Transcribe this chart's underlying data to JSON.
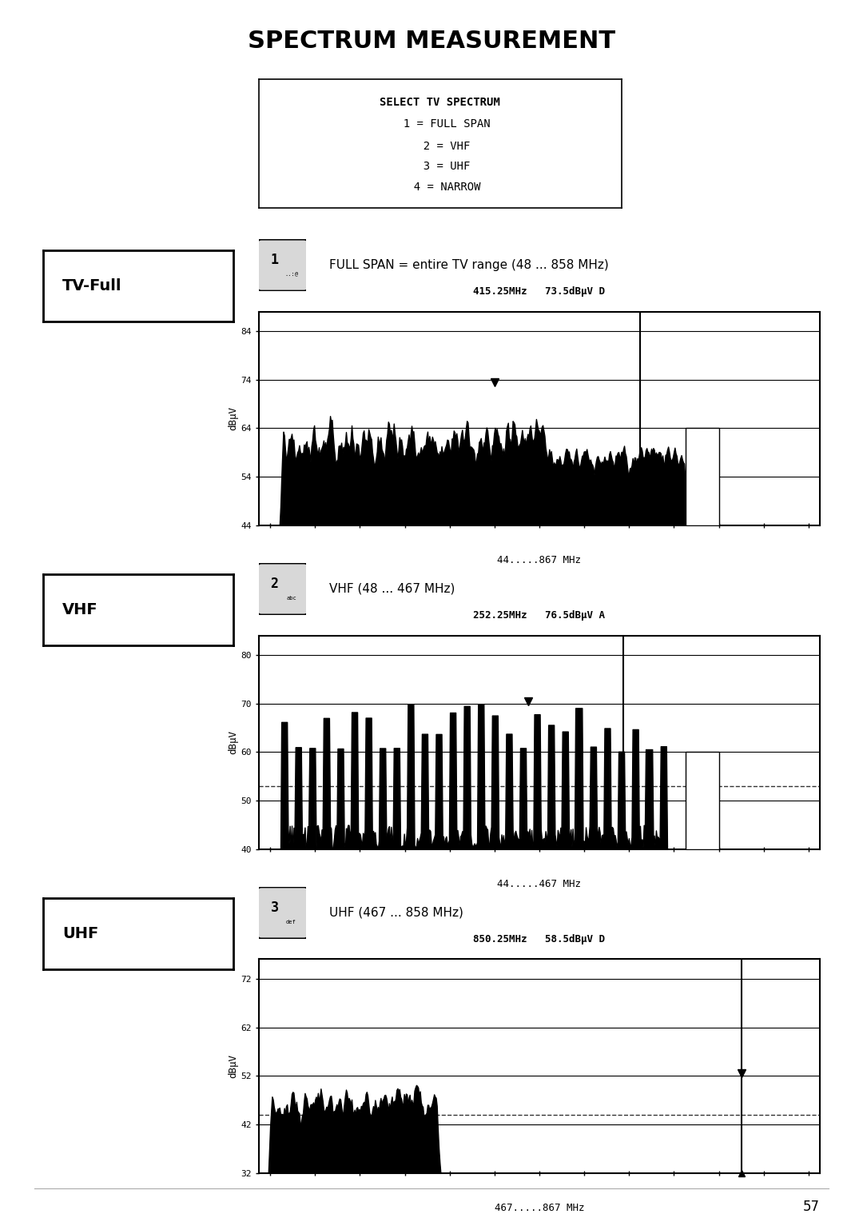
{
  "title": "SPECTRUM MEASUREMENT",
  "title_bg": "#c8c8c8",
  "page_bg": "#ffffff",
  "page_number": "57",
  "menu_box": {
    "lines": [
      "SELECT TV SPECTRUM",
      "  1 = FULL SPAN",
      "  2 = VHF",
      "  3 = UHF",
      "  4 = NARROW"
    ]
  },
  "sections": [
    {
      "label": "TV-Full",
      "key_num": "1",
      "key_sub": "..:@",
      "description": "FULL SPAN = entire TV range (48 ... 858 MHz)",
      "screen": {
        "header": "415.25MHz   73.5dBμV D",
        "ylabel": "dBμV",
        "yticks": [
          44,
          54,
          64,
          74,
          84
        ],
        "xlabel": "44.....867 MHz",
        "xlim": [
          0,
          100
        ],
        "ylim": [
          44,
          88
        ]
      }
    },
    {
      "label": "VHF",
      "key_num": "2",
      "key_sub": "abc",
      "description": "VHF (48 ... 467 MHz)",
      "screen": {
        "header": "252.25MHz   76.5dBμV A",
        "ylabel": "dBμV",
        "yticks": [
          40,
          50,
          60,
          70,
          80
        ],
        "xlabel": "44.....467 MHz",
        "xlim": [
          0,
          100
        ],
        "ylim": [
          40,
          84
        ]
      }
    },
    {
      "label": "UHF",
      "key_num": "3",
      "key_sub": "def",
      "description": "UHF (467 ... 858 MHz)",
      "screen": {
        "header": "850.25MHz   58.5dBμV D",
        "ylabel": "dBμV",
        "yticks": [
          32,
          42,
          52,
          62,
          72
        ],
        "xlabel": "467.....867 MHz",
        "xlim": [
          0,
          100
        ],
        "ylim": [
          32,
          76
        ]
      }
    }
  ]
}
